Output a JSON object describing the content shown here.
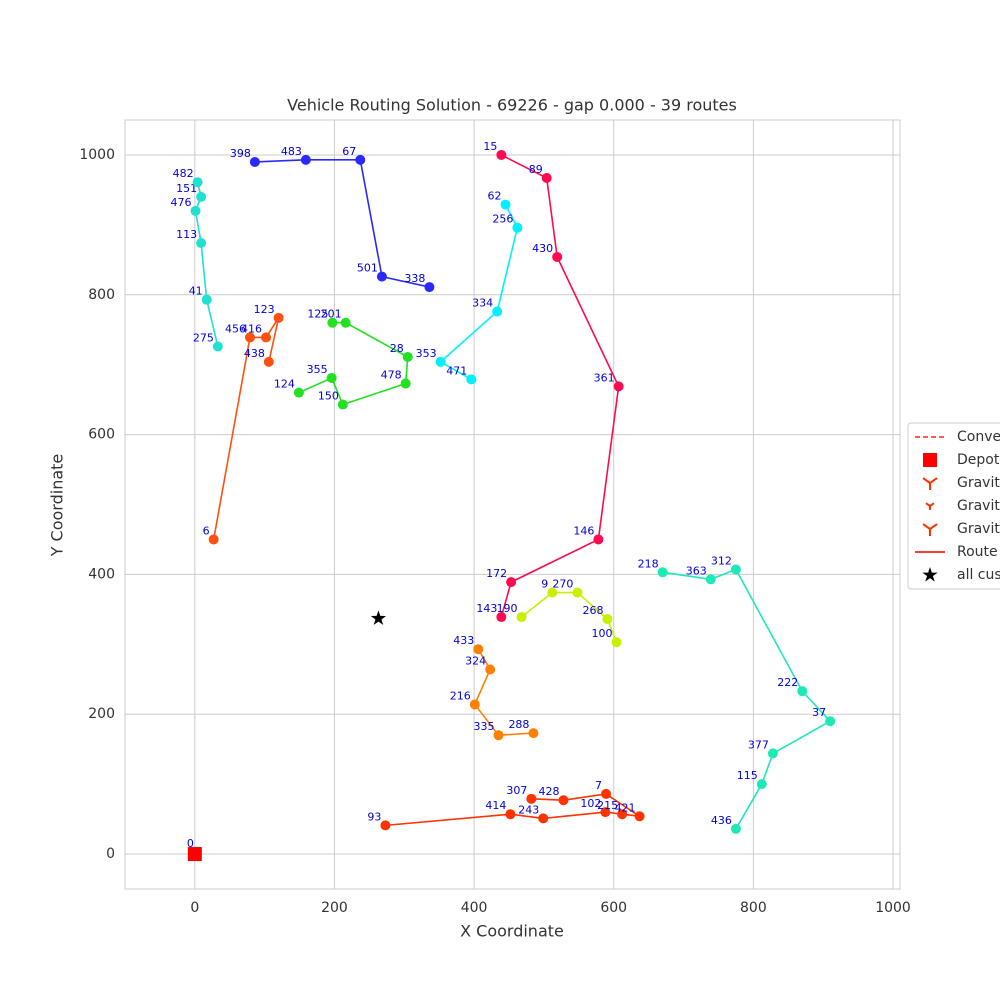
{
  "chart_data": {
    "type": "route",
    "title": "Vehicle Routing Solution - 69226 - gap 0.000 - 39 routes",
    "xlabel": "X Coordinate",
    "ylabel": "Y Coordinate",
    "xlim": [
      -100,
      1010
    ],
    "ylim": [
      -50,
      1050
    ],
    "xticks": [
      0,
      200,
      400,
      600,
      800,
      1000
    ],
    "yticks": [
      0,
      200,
      400,
      600,
      800,
      1000
    ],
    "grid": true,
    "legend_position": "right",
    "legend": [
      "Conve",
      "Depot",
      "Gravit",
      "Gravit",
      "Gravit",
      "Route",
      "all cus"
    ],
    "depot": {
      "x": 0,
      "y": 0,
      "label": "0",
      "color": "#ff0000"
    },
    "centroid": {
      "x": 263,
      "y": 337,
      "color": "#000000"
    },
    "routes": [
      {
        "color": "#ff0a50",
        "x": [
          439,
          504,
          519,
          607,
          578,
          453,
          439
        ],
        "y": [
          1000,
          967,
          854,
          669,
          450,
          389,
          339
        ],
        "labels": [
          "15",
          "89",
          "430",
          "361",
          "146",
          "172",
          "143"
        ]
      },
      {
        "color": "#ff3300",
        "x": [
          273,
          452,
          499,
          588,
          612,
          637,
          589,
          528,
          482
        ],
        "y": [
          41,
          57,
          51,
          60,
          57,
          54,
          86,
          77,
          79
        ],
        "labels": [
          "93",
          "414",
          "243",
          "102",
          "215",
          "421",
          "7",
          "428",
          "307"
        ]
      },
      {
        "color": "#ff8000",
        "x": [
          406,
          423,
          401,
          435,
          485
        ],
        "y": [
          293,
          264,
          214,
          170,
          173
        ],
        "labels": [
          "433",
          "324",
          "216",
          "335",
          "288"
        ]
      },
      {
        "color": "#22e022",
        "x": [
          149,
          196,
          212,
          302,
          305,
          216,
          197
        ],
        "y": [
          660,
          681,
          643,
          673,
          711,
          760,
          760
        ],
        "labels": [
          "124",
          "355",
          "150",
          "478",
          "28",
          "201",
          "125"
        ]
      },
      {
        "color": "#20e0d0",
        "x": [
          33,
          17,
          9,
          1,
          9,
          4
        ],
        "y": [
          726,
          793,
          874,
          920,
          940,
          961
        ],
        "labels": [
          "275",
          "41",
          "113",
          "476",
          "151",
          "482"
        ]
      },
      {
        "color": "#00f0ff",
        "x": [
          396,
          352,
          433,
          462,
          445
        ],
        "y": [
          679,
          704,
          776,
          896,
          929
        ],
        "labels": [
          "471",
          "353",
          "334",
          "256",
          "62"
        ]
      },
      {
        "color": "#1de9b6",
        "x": [
          775,
          812,
          828,
          910,
          870,
          775,
          739,
          670
        ],
        "y": [
          36,
          100,
          144,
          190,
          233,
          407,
          393,
          403
        ],
        "labels": [
          "436",
          "115",
          "377",
          "37",
          "222",
          "312",
          "363",
          "218"
        ]
      },
      {
        "color": "#2a2aff",
        "x": [
          86,
          159,
          237,
          268,
          336
        ],
        "y": [
          990,
          993,
          993,
          826,
          811
        ],
        "labels": [
          "398",
          "483",
          "67",
          "501",
          "338"
        ]
      },
      {
        "color": "#c8f000",
        "x": [
          468,
          512,
          548,
          591,
          604
        ],
        "y": [
          339,
          374,
          374,
          336,
          303
        ],
        "labels": [
          "190",
          "9",
          "270",
          "268",
          "100"
        ]
      },
      {
        "color": "#ff5010",
        "x": [
          27,
          79,
          102,
          120,
          106
        ],
        "y": [
          450,
          739,
          739,
          767,
          704
        ],
        "labels": [
          "6",
          "456",
          "416",
          "123",
          "438"
        ]
      }
    ]
  }
}
